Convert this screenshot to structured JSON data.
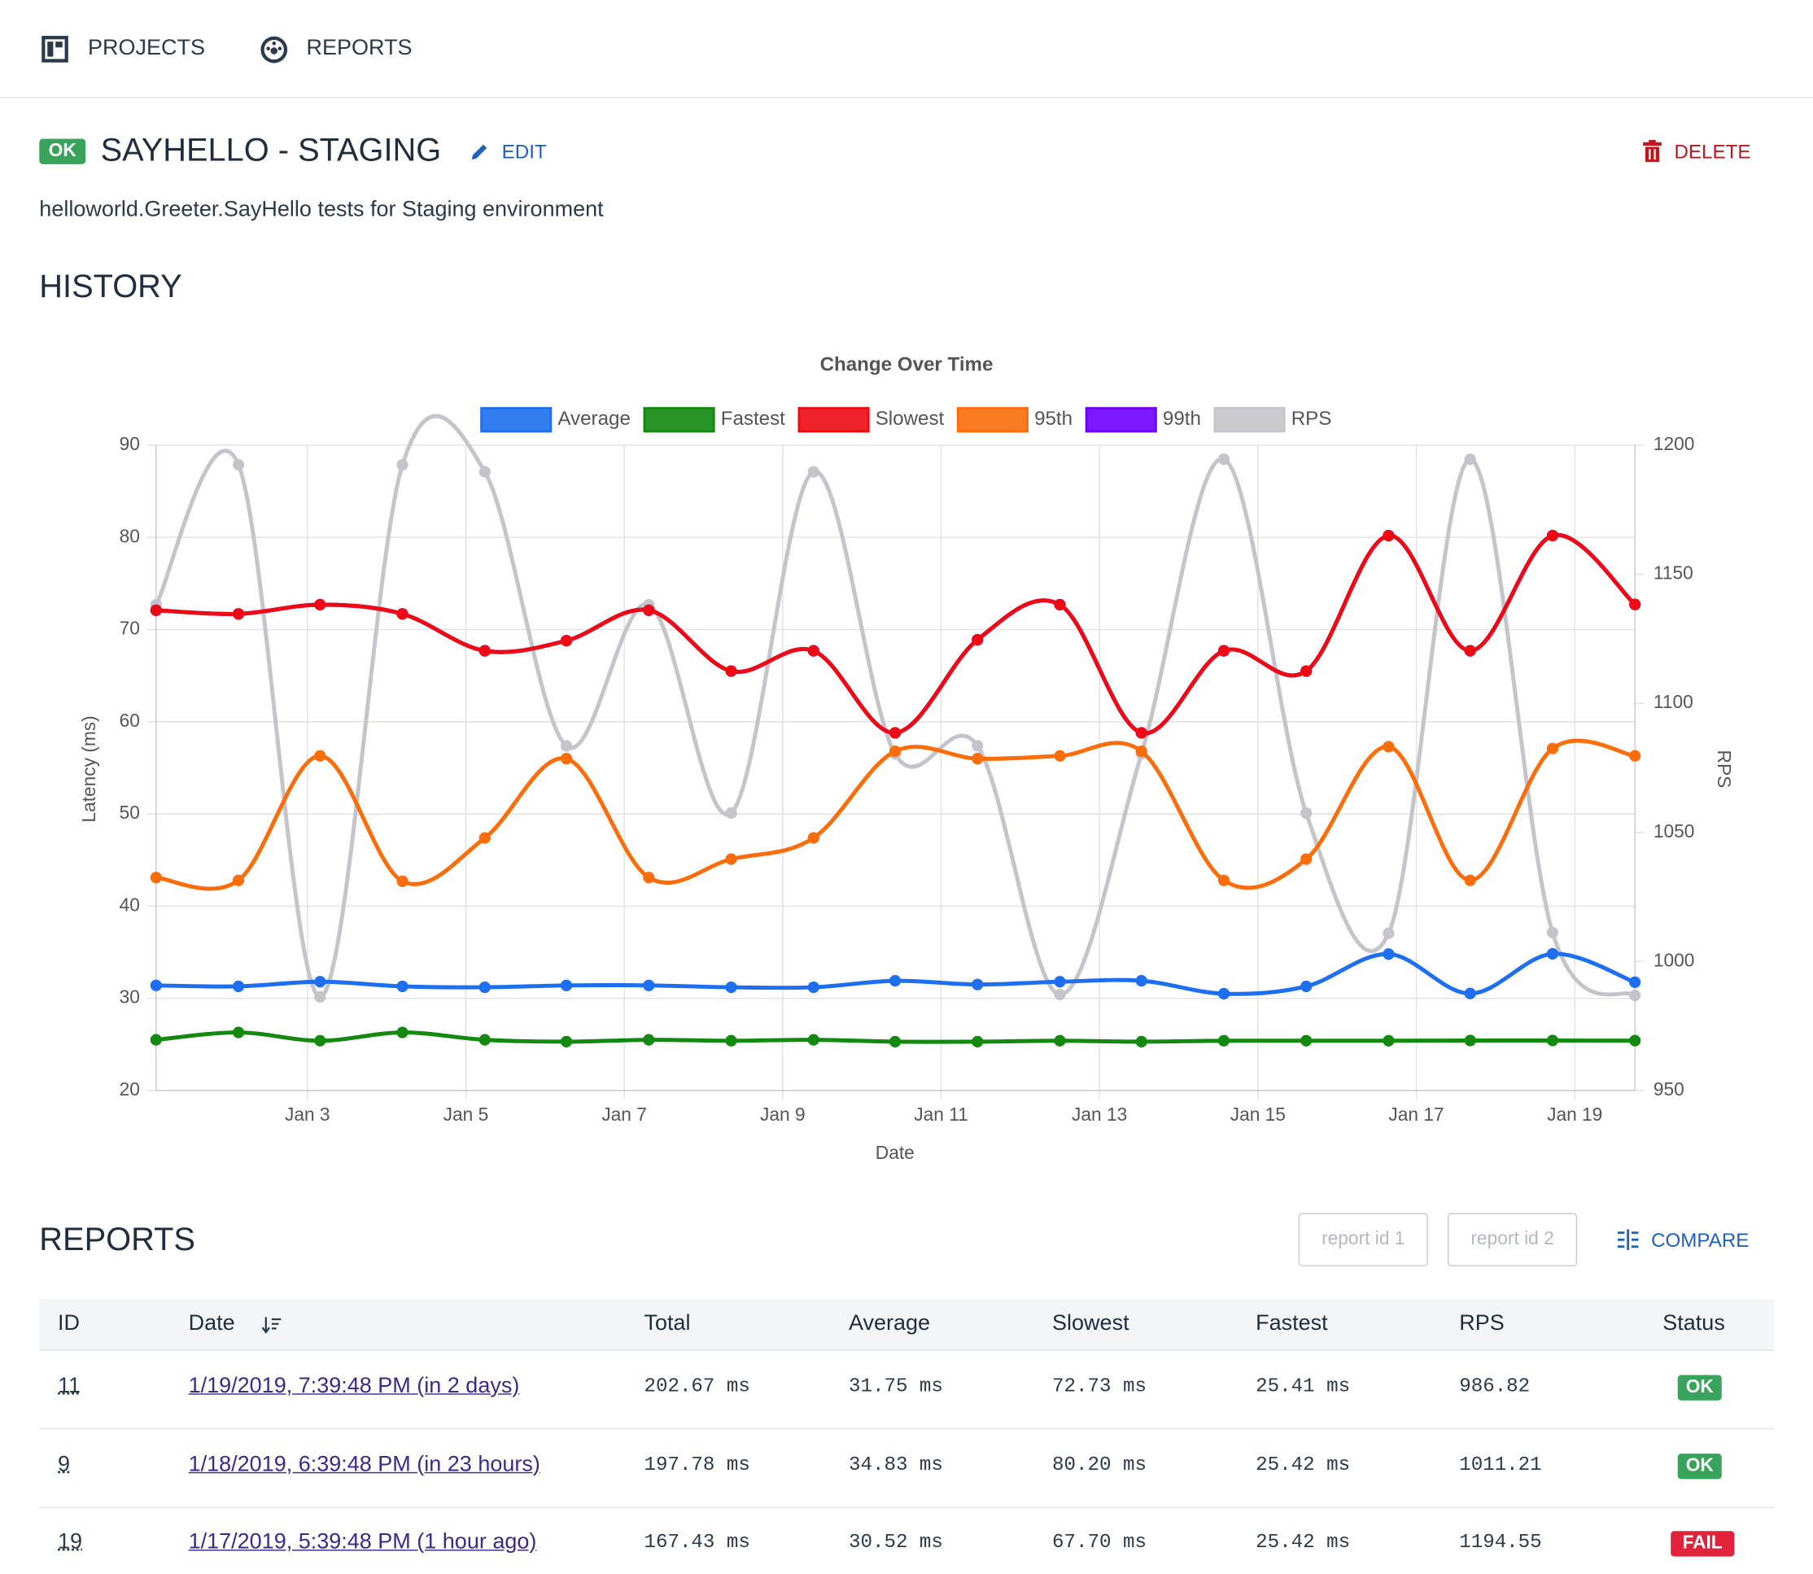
{
  "nav": [
    {
      "label": "PROJECTS"
    },
    {
      "label": "REPORTS"
    }
  ],
  "header": {
    "status": "OK",
    "title": "SAYHELLO - STAGING",
    "edit": "EDIT",
    "delete": "DELETE",
    "description": "helloworld.Greeter.SayHello tests for Staging environment"
  },
  "history_title": "HISTORY",
  "chart_data": {
    "type": "line",
    "title": "Change Over Time",
    "x_label": "Date",
    "y_label": "Latency (ms)",
    "y2_label": "RPS",
    "x": [
      1.09,
      2.13,
      3.16,
      4.2,
      5.24,
      6.27,
      7.31,
      8.35,
      9.39,
      10.42,
      11.46,
      12.5,
      13.53,
      14.57,
      15.61,
      16.65,
      17.68,
      18.72,
      19.76
    ],
    "xlim": [
      1.09,
      19.76
    ],
    "xticks": [
      {
        "value": 3,
        "label": "Jan 3"
      },
      {
        "value": 5,
        "label": "Jan 5"
      },
      {
        "value": 7,
        "label": "Jan 7"
      },
      {
        "value": 9,
        "label": "Jan 9"
      },
      {
        "value": 11,
        "label": "Jan 11"
      },
      {
        "value": 13,
        "label": "Jan 13"
      },
      {
        "value": 15,
        "label": "Jan 15"
      },
      {
        "value": 17,
        "label": "Jan 17"
      },
      {
        "value": 19,
        "label": "Jan 19"
      }
    ],
    "ylim": [
      20,
      90
    ],
    "yticks": [
      20,
      30,
      40,
      50,
      60,
      70,
      80,
      90
    ],
    "y2lim": [
      950,
      1200
    ],
    "y2ticks": [
      950,
      1000,
      1050,
      1100,
      1150,
      1200
    ],
    "grid": true,
    "legend": "top",
    "series": [
      {
        "name": "Average",
        "color": "#1e6ff0",
        "values": [
          31.4,
          31.3,
          31.8,
          31.3,
          31.2,
          31.4,
          31.4,
          31.2,
          31.2,
          31.9,
          31.5,
          31.8,
          31.9,
          30.5,
          31.3,
          34.8,
          30.52,
          34.83,
          31.75
        ]
      },
      {
        "name": "Fastest",
        "color": "#138a0f",
        "values": [
          25.5,
          26.3,
          25.4,
          26.3,
          25.5,
          25.3,
          25.5,
          25.4,
          25.5,
          25.3,
          25.3,
          25.4,
          25.3,
          25.4,
          25.4,
          25.4,
          25.42,
          25.42,
          25.41
        ]
      },
      {
        "name": "Slowest",
        "color": "#ee0a14",
        "values": [
          72.1,
          71.7,
          72.7,
          71.7,
          67.7,
          68.8,
          72.1,
          65.5,
          67.7,
          58.8,
          68.9,
          72.7,
          58.8,
          67.7,
          65.5,
          80.2,
          67.7,
          80.2,
          72.73
        ]
      },
      {
        "name": "95th",
        "color": "#fb6d0a",
        "values": [
          43.1,
          42.8,
          56.3,
          42.7,
          47.4,
          56.0,
          43.1,
          45.1,
          47.4,
          56.8,
          56.0,
          56.3,
          56.8,
          42.8,
          45.1,
          57.3,
          42.8,
          57.1,
          56.3
        ]
      },
      {
        "name": "99th",
        "color": "#6e00ff",
        "values": [
          72.1,
          71.7,
          72.7,
          71.7,
          67.7,
          68.8,
          72.1,
          65.5,
          67.7,
          58.8,
          68.9,
          72.7,
          58.8,
          67.7,
          65.5,
          80.2,
          67.7,
          80.2,
          72.73
        ]
      },
      {
        "name": "RPS",
        "color": "#c4c4ca",
        "axis": "y2",
        "values": [
          1138.2,
          1192.4,
          986.3,
          1192.4,
          1189.7,
          1083.5,
          1138.2,
          1057.5,
          1189.7,
          1080.4,
          1083.5,
          987.2,
          1080.4,
          1194.6,
          1057.5,
          1010.9,
          1194.55,
          1011.21,
          986.82
        ]
      }
    ]
  },
  "reports": {
    "title": "REPORTS",
    "input1": "report id 1",
    "input2": "report id 2",
    "compare": "COMPARE",
    "columns": [
      "ID",
      "Date",
      "Total",
      "Average",
      "Slowest",
      "Fastest",
      "RPS",
      "Status"
    ],
    "rows": [
      [
        "11",
        "1/19/2019, 7:39:48 PM (in 2 days)",
        "202.67 ms",
        "31.75 ms",
        "72.73 ms",
        "25.41 ms",
        "986.82",
        "OK"
      ],
      [
        "9",
        "1/18/2019, 6:39:48 PM (in 23 hours)",
        "197.78 ms",
        "34.83 ms",
        "80.20 ms",
        "25.42 ms",
        "1011.21",
        "OK"
      ],
      [
        "19",
        "1/17/2019, 5:39:48 PM (1 hour ago)",
        "167.43 ms",
        "30.52 ms",
        "67.70 ms",
        "25.42 ms",
        "1194.55",
        "FAIL"
      ]
    ]
  }
}
